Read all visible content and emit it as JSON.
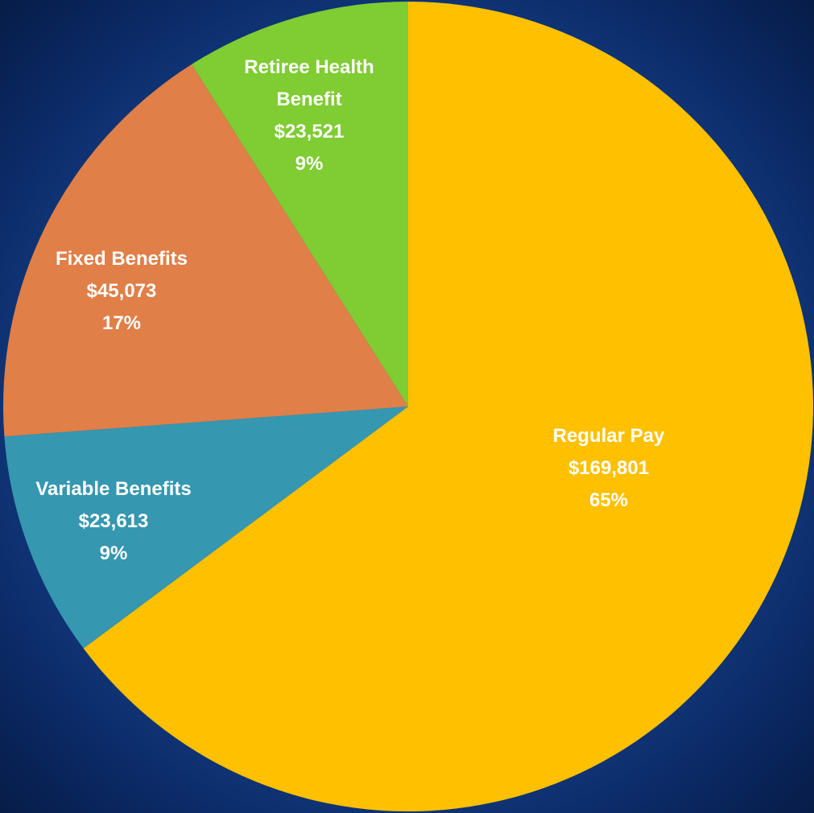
{
  "chart_data": {
    "type": "pie",
    "categories": [
      "Regular Pay",
      "Variable Benefits",
      "Fixed Benefits",
      "Retiree Health Benefit"
    ],
    "values": [
      169801,
      23613,
      45073,
      23521
    ],
    "value_labels": [
      "$169,801",
      "$23,613",
      "$45,073",
      "$23,521"
    ],
    "percentages": [
      65,
      9,
      17,
      9
    ],
    "percentage_labels": [
      "65%",
      "9%",
      "17%",
      "9%"
    ],
    "colors": [
      "#ffc000",
      "#3597b0",
      "#e07f47",
      "#7fcc33"
    ]
  }
}
